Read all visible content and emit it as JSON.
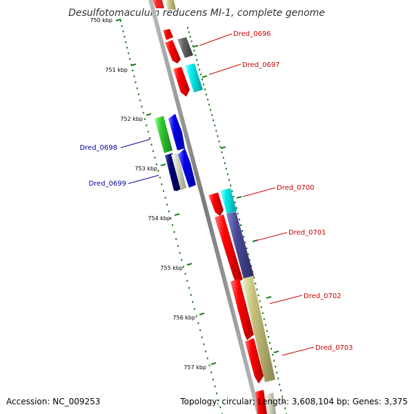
{
  "title": "Desulfotomaculum reducens MI-1, complete genome",
  "footer": {
    "accession": "Accession: NC_009253",
    "summary": "Topology: circular; Length: 3,608,104 bp; Genes: 3,375"
  },
  "ticks": [
    {
      "label": "750 kbp"
    },
    {
      "label": "751 kbp"
    },
    {
      "label": "752 kbp"
    },
    {
      "label": "753 kbp"
    },
    {
      "label": "754 kbp"
    },
    {
      "label": "755 kbp"
    },
    {
      "label": "756 kbp"
    },
    {
      "label": "757 kbp"
    }
  ],
  "gene_labels": [
    {
      "name": "Dred_0696",
      "color": "#cc0000"
    },
    {
      "name": "Dred_0697",
      "color": "#cc0000"
    },
    {
      "name": "Dred_0698",
      "color": "#000099"
    },
    {
      "name": "Dred_0699",
      "color": "#000099"
    },
    {
      "name": "Dred_0700",
      "color": "#cc0000"
    },
    {
      "name": "Dred_0701",
      "color": "#cc0000"
    },
    {
      "name": "Dred_0702",
      "color": "#cc0000"
    },
    {
      "name": "Dred_0703",
      "color": "#cc0000"
    }
  ],
  "colors": {
    "backbone": "#8a8a8a",
    "tick": "#1f7a1f",
    "cds": "#ee0000",
    "cds_blue": "#0000ee",
    "cds_navy": "#000077",
    "cds_green": "#33cc33",
    "cog_cyan": "#00eeee",
    "cog_grey": "#666666",
    "cog_purple": "#4a4a99",
    "cog_khaki": "#c4c07a",
    "cog_light": "#ccccbb"
  }
}
